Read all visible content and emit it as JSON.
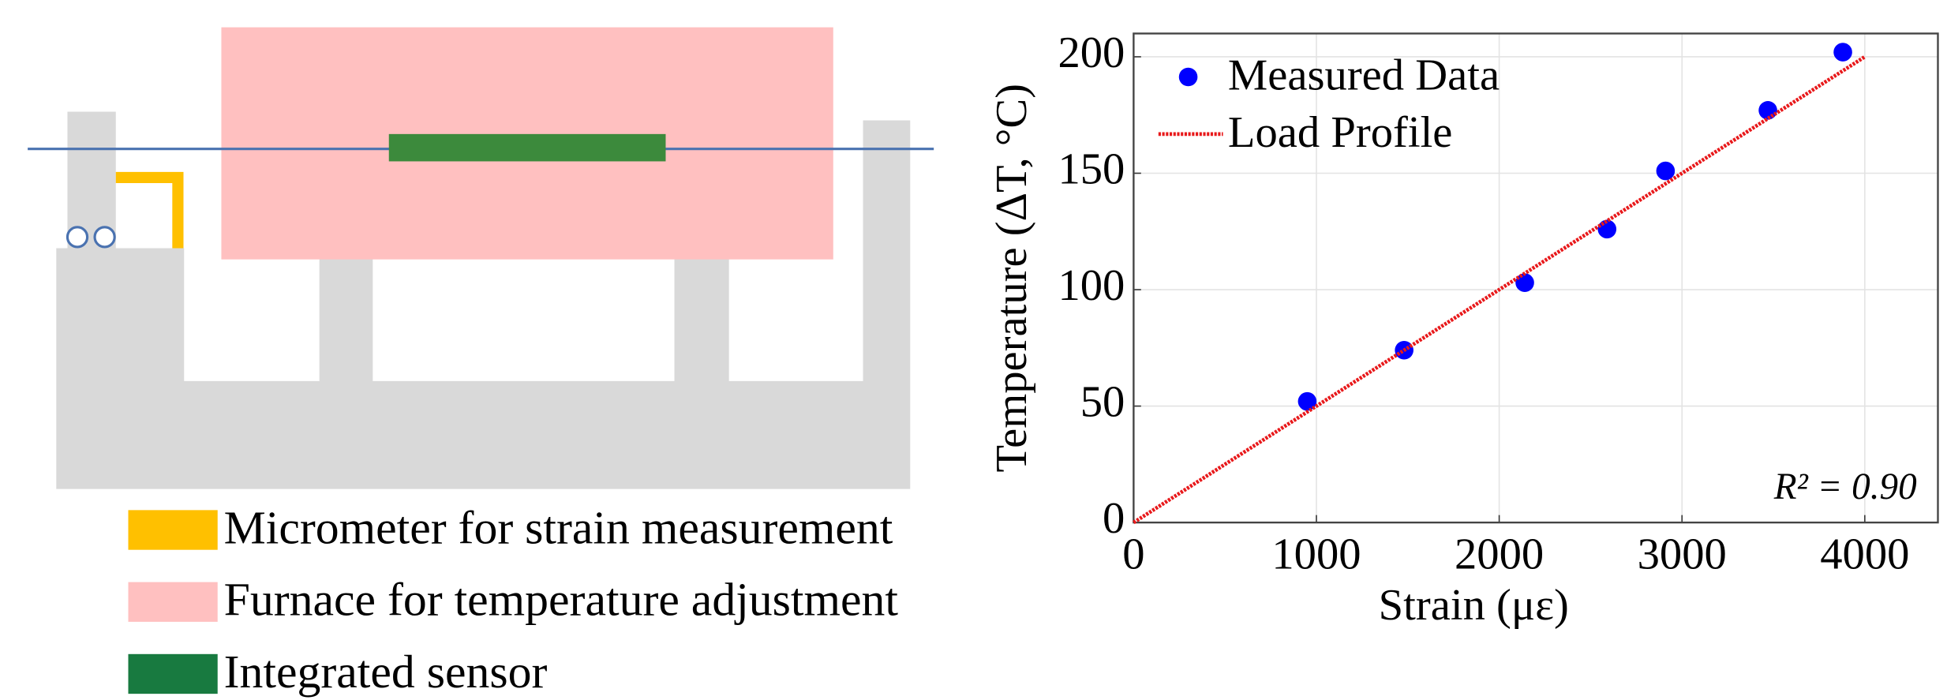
{
  "diagram": {
    "legend": [
      {
        "label": "Micrometer for strain measurement",
        "color": "#ffc000"
      },
      {
        "label": "Furnace for temperature adjustment",
        "color": "#ffc0c0"
      },
      {
        "label": "Integrated sensor",
        "color": "#187a40"
      }
    ]
  },
  "chart_data": {
    "type": "scatter",
    "xlabel": "Strain (με)",
    "ylabel": "Temperature (ΔT, °C)",
    "annotation": "R² = 0.90",
    "xlim": [
      0,
      4400
    ],
    "ylim": [
      0,
      210
    ],
    "xticks": [
      0,
      1000,
      2000,
      3000,
      4000
    ],
    "yticks": [
      0,
      50,
      100,
      150,
      200
    ],
    "grid": true,
    "legend": "upper-left",
    "series": [
      {
        "name": "Measured Data",
        "color": "#0000ff",
        "kind": "scatter",
        "x": [
          950,
          1480,
          2140,
          2590,
          2910,
          3470,
          3880
        ],
        "values": [
          52,
          74,
          103,
          126,
          151,
          177,
          202
        ]
      },
      {
        "name": "Load Profile",
        "color": "#e8191b",
        "kind": "line",
        "x": [
          0,
          4000
        ],
        "values": [
          0,
          200
        ]
      }
    ]
  }
}
